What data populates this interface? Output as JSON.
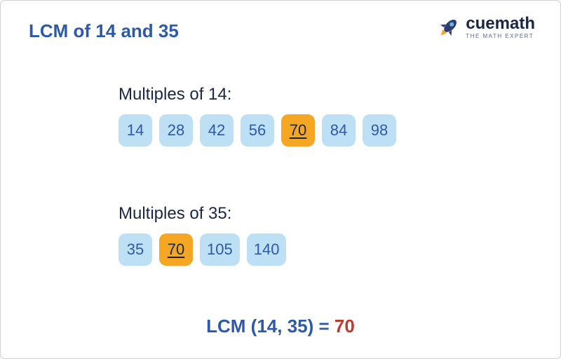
{
  "title": {
    "text": "LCM of 14 and 35",
    "color": "#2d5aa8"
  },
  "logo": {
    "brand": "cuemath",
    "tagline": "THE MATH EXPERT",
    "rocket_body": "#2d3e6e",
    "rocket_flame": "#f5a623",
    "rocket_window": "#6fb4e8"
  },
  "colors": {
    "section_title": "#1a2744",
    "chip_bg": "#bde0f5",
    "chip_text": "#2d5aa8",
    "chip_hl_bg": "#f5a623",
    "chip_hl_text": "#1a2744",
    "result_label": "#2d5aa8",
    "result_value": "#c0392b"
  },
  "sections": [
    {
      "title": "Multiples of 14:",
      "chips": [
        {
          "value": "14",
          "highlight": false
        },
        {
          "value": "28",
          "highlight": false
        },
        {
          "value": "42",
          "highlight": false
        },
        {
          "value": "56",
          "highlight": false
        },
        {
          "value": "70",
          "highlight": true
        },
        {
          "value": "84",
          "highlight": false
        },
        {
          "value": "98",
          "highlight": false
        }
      ]
    },
    {
      "title": "Multiples of 35:",
      "chips": [
        {
          "value": "35",
          "highlight": false
        },
        {
          "value": "70",
          "highlight": true
        },
        {
          "value": "105",
          "highlight": false
        },
        {
          "value": "140",
          "highlight": false
        }
      ]
    }
  ],
  "result": {
    "label": "LCM (14, 35) = ",
    "value": "70"
  }
}
